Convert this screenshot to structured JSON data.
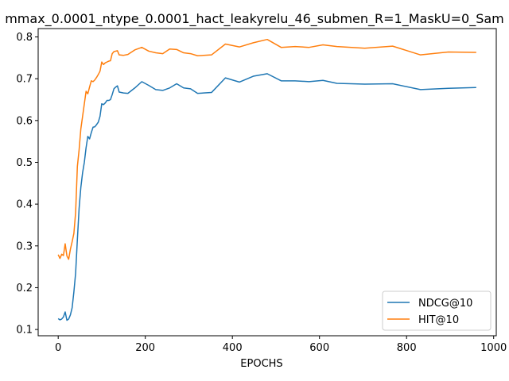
{
  "chart_data": {
    "type": "line",
    "title": "mmax_0.0001_ntype_0.0001_hact_leakyrelu_46_submen_R=1_MaskU=0_Sam",
    "xlabel": "EPOCHS",
    "ylabel": "",
    "xlim": [
      -46,
      1006
    ],
    "ylim": [
      0.085,
      0.82
    ],
    "xticks": [
      0,
      200,
      400,
      600,
      800,
      1000
    ],
    "yticks": [
      0.1,
      0.2,
      0.3,
      0.4,
      0.5,
      0.6,
      0.7,
      0.8
    ],
    "ytick_labels": [
      "0.1",
      "0.2",
      "0.3",
      "0.4",
      "0.5",
      "0.6",
      "0.7",
      "0.8"
    ],
    "xtick_labels": [
      "0",
      "200",
      "400",
      "600",
      "800",
      "1000"
    ],
    "grid": false,
    "legend_position": "lower-right",
    "series": [
      {
        "name": "NDCG@10",
        "color": "#1f77b4",
        "x": [
          0,
          4,
          8,
          12,
          16,
          20,
          24,
          28,
          32,
          36,
          40,
          44,
          48,
          52,
          56,
          60,
          64,
          68,
          72,
          76,
          80,
          84,
          88,
          92,
          96,
          100,
          104,
          108,
          112,
          116,
          120,
          124,
          128,
          132,
          136,
          140,
          150,
          160,
          176,
          192,
          208,
          224,
          240,
          256,
          272,
          288,
          304,
          320,
          352,
          384,
          416,
          448,
          480,
          512,
          544,
          576,
          608,
          640,
          704,
          768,
          832,
          896,
          960
        ],
        "y": [
          0.126,
          0.123,
          0.125,
          0.13,
          0.142,
          0.122,
          0.125,
          0.135,
          0.152,
          0.19,
          0.235,
          0.315,
          0.39,
          0.44,
          0.475,
          0.5,
          0.535,
          0.562,
          0.556,
          0.571,
          0.584,
          0.585,
          0.59,
          0.596,
          0.61,
          0.64,
          0.638,
          0.642,
          0.648,
          0.648,
          0.65,
          0.662,
          0.676,
          0.68,
          0.683,
          0.668,
          0.666,
          0.665,
          0.678,
          0.693,
          0.684,
          0.674,
          0.672,
          0.678,
          0.688,
          0.678,
          0.676,
          0.665,
          0.667,
          0.702,
          0.692,
          0.706,
          0.712,
          0.695,
          0.695,
          0.693,
          0.696,
          0.689,
          0.687,
          0.688,
          0.674,
          0.677,
          0.679
        ]
      },
      {
        "name": "HIT@10",
        "color": "#ff7f0e",
        "x": [
          0,
          4,
          8,
          12,
          16,
          20,
          24,
          28,
          32,
          36,
          40,
          44,
          48,
          52,
          56,
          60,
          64,
          68,
          72,
          76,
          80,
          84,
          88,
          92,
          96,
          100,
          104,
          108,
          112,
          116,
          120,
          124,
          128,
          132,
          136,
          140,
          150,
          160,
          176,
          192,
          208,
          224,
          240,
          256,
          272,
          288,
          304,
          320,
          352,
          384,
          416,
          448,
          480,
          512,
          544,
          576,
          608,
          640,
          704,
          768,
          832,
          896,
          960
        ],
        "y": [
          0.279,
          0.27,
          0.28,
          0.277,
          0.305,
          0.276,
          0.268,
          0.292,
          0.31,
          0.33,
          0.38,
          0.49,
          0.53,
          0.58,
          0.61,
          0.64,
          0.67,
          0.664,
          0.68,
          0.695,
          0.693,
          0.697,
          0.703,
          0.71,
          0.718,
          0.74,
          0.734,
          0.738,
          0.74,
          0.742,
          0.743,
          0.76,
          0.765,
          0.766,
          0.767,
          0.757,
          0.756,
          0.758,
          0.769,
          0.775,
          0.766,
          0.762,
          0.76,
          0.771,
          0.77,
          0.762,
          0.76,
          0.755,
          0.757,
          0.783,
          0.776,
          0.786,
          0.794,
          0.775,
          0.777,
          0.775,
          0.781,
          0.777,
          0.773,
          0.778,
          0.757,
          0.764,
          0.763
        ]
      }
    ]
  }
}
